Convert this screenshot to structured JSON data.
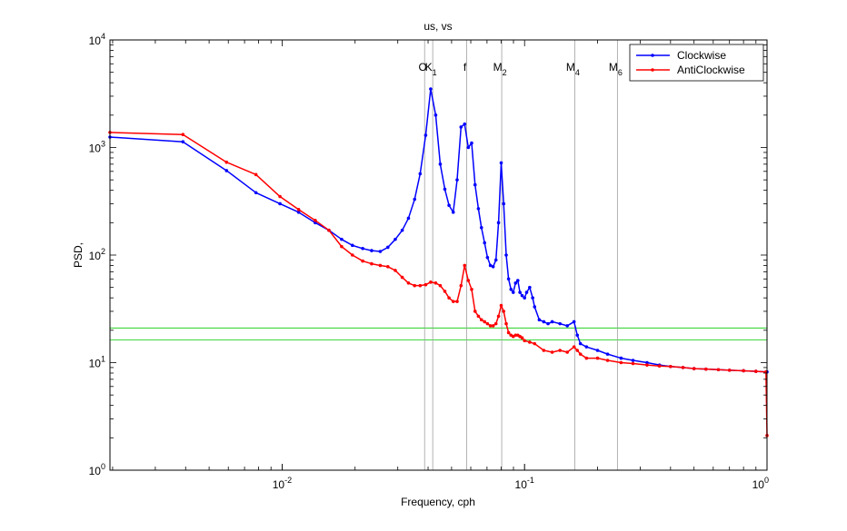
{
  "chart_data": {
    "type": "line",
    "title": "us, vs",
    "xlabel": "Frequency, cph",
    "ylabel": "PSD,",
    "xscale": "log",
    "yscale": "log",
    "xlim": [
      0.00195,
      1.0
    ],
    "ylim": [
      1,
      10000
    ],
    "x_ticks": [
      {
        "value": 0.01,
        "base": "10",
        "exp": "-2"
      },
      {
        "value": 0.1,
        "base": "10",
        "exp": "-1"
      },
      {
        "value": 1,
        "base": "10",
        "exp": "0"
      }
    ],
    "y_ticks": [
      {
        "value": 1,
        "base": "10",
        "exp": "0"
      },
      {
        "value": 10,
        "base": "10",
        "exp": "1"
      },
      {
        "value": 100,
        "base": "10",
        "exp": "2"
      },
      {
        "value": 1000,
        "base": "10",
        "exp": "3"
      },
      {
        "value": 10000,
        "base": "10",
        "exp": "4"
      }
    ],
    "legend_position": "top-right",
    "series": [
      {
        "name": "Clockwise",
        "color": "#0000ff",
        "x": [
          0.00195,
          0.0039,
          0.0059,
          0.0078,
          0.0098,
          0.0117,
          0.0137,
          0.0156,
          0.0176,
          0.0195,
          0.0215,
          0.0234,
          0.0254,
          0.0273,
          0.0293,
          0.0313,
          0.0332,
          0.0352,
          0.0371,
          0.0391,
          0.041,
          0.043,
          0.0449,
          0.0469,
          0.0488,
          0.0508,
          0.0527,
          0.0547,
          0.0566,
          0.0586,
          0.0605,
          0.0625,
          0.0645,
          0.0664,
          0.0684,
          0.0703,
          0.0723,
          0.0742,
          0.0762,
          0.0781,
          0.0801,
          0.082,
          0.084,
          0.0859,
          0.0879,
          0.0898,
          0.0918,
          0.0938,
          0.0957,
          0.0977,
          0.1,
          0.102,
          0.105,
          0.108,
          0.11,
          0.115,
          0.12,
          0.125,
          0.13,
          0.14,
          0.15,
          0.16,
          0.165,
          0.17,
          0.18,
          0.2,
          0.22,
          0.25,
          0.28,
          0.32,
          0.36,
          0.4,
          0.45,
          0.5,
          0.56,
          0.63,
          0.7,
          0.8,
          0.9,
          1.0
        ],
        "y": [
          1250,
          1130,
          610,
          380,
          300,
          250,
          200,
          170,
          140,
          123,
          115,
          110,
          108,
          118,
          140,
          170,
          220,
          330,
          570,
          1300,
          3500,
          2000,
          700,
          410,
          290,
          250,
          500,
          1550,
          1650,
          1000,
          1100,
          450,
          270,
          180,
          130,
          95,
          80,
          78,
          90,
          200,
          720,
          300,
          100,
          60,
          48,
          45,
          55,
          58,
          45,
          42,
          40,
          45,
          50,
          40,
          33,
          25,
          24,
          23,
          24,
          23,
          22,
          24,
          18,
          15,
          14,
          13,
          12,
          11,
          10.5,
          10,
          9.5,
          9.2,
          9,
          8.8,
          8.7,
          8.6,
          8.5,
          8.4,
          8.3,
          8.2
        ]
      },
      {
        "name": "AntiClockwise",
        "color": "#ff0000",
        "x": [
          0.00195,
          0.0039,
          0.0059,
          0.0078,
          0.0098,
          0.0117,
          0.0137,
          0.0156,
          0.0176,
          0.0195,
          0.0215,
          0.0234,
          0.0254,
          0.0273,
          0.0293,
          0.0313,
          0.0332,
          0.0352,
          0.0371,
          0.0391,
          0.041,
          0.043,
          0.0449,
          0.0469,
          0.0488,
          0.0508,
          0.0527,
          0.0547,
          0.0566,
          0.0586,
          0.0605,
          0.0625,
          0.0645,
          0.0664,
          0.0684,
          0.0703,
          0.0723,
          0.0742,
          0.0762,
          0.0781,
          0.0801,
          0.082,
          0.084,
          0.0859,
          0.0879,
          0.0898,
          0.0918,
          0.0938,
          0.0957,
          0.0977,
          0.1,
          0.105,
          0.11,
          0.12,
          0.13,
          0.14,
          0.15,
          0.16,
          0.165,
          0.17,
          0.18,
          0.2,
          0.22,
          0.25,
          0.28,
          0.32,
          0.36,
          0.4,
          0.45,
          0.5,
          0.56,
          0.63,
          0.7,
          0.8,
          0.9,
          0.99,
          1.0
        ],
        "y": [
          1380,
          1320,
          730,
          560,
          350,
          265,
          210,
          170,
          120,
          100,
          88,
          83,
          80,
          78,
          72,
          62,
          55,
          52,
          52,
          53,
          56,
          55,
          52,
          46,
          40,
          37,
          37,
          52,
          80,
          58,
          48,
          30,
          27,
          25,
          24,
          23,
          22,
          22,
          23,
          27,
          34,
          30,
          23,
          19,
          18,
          17.5,
          18,
          18,
          17.5,
          17,
          16,
          15.5,
          15,
          13,
          12.5,
          13,
          12.5,
          14,
          13,
          12,
          11,
          11,
          10.5,
          10,
          9.8,
          9.5,
          9.3,
          9.2,
          9,
          8.8,
          8.7,
          8.6,
          8.5,
          8.4,
          8.3,
          8.2,
          2.1
        ]
      }
    ],
    "vertical_markers": [
      {
        "label": "O",
        "sub": "",
        "x": 0.0387
      },
      {
        "label": "K",
        "sub": "1",
        "x": 0.0418
      },
      {
        "label": "f",
        "sub": "",
        "x": 0.0577
      },
      {
        "label": "M",
        "sub": "2",
        "x": 0.0805
      },
      {
        "label": "M",
        "sub": "4",
        "x": 0.161
      },
      {
        "label": "M",
        "sub": "6",
        "x": 0.2415
      }
    ],
    "horizontal_lines": [
      {
        "y": 21,
        "color": "#00cc00"
      },
      {
        "y": 16.3,
        "color": "#00cc00"
      }
    ],
    "marker_line_color": "#a0a0a0"
  }
}
